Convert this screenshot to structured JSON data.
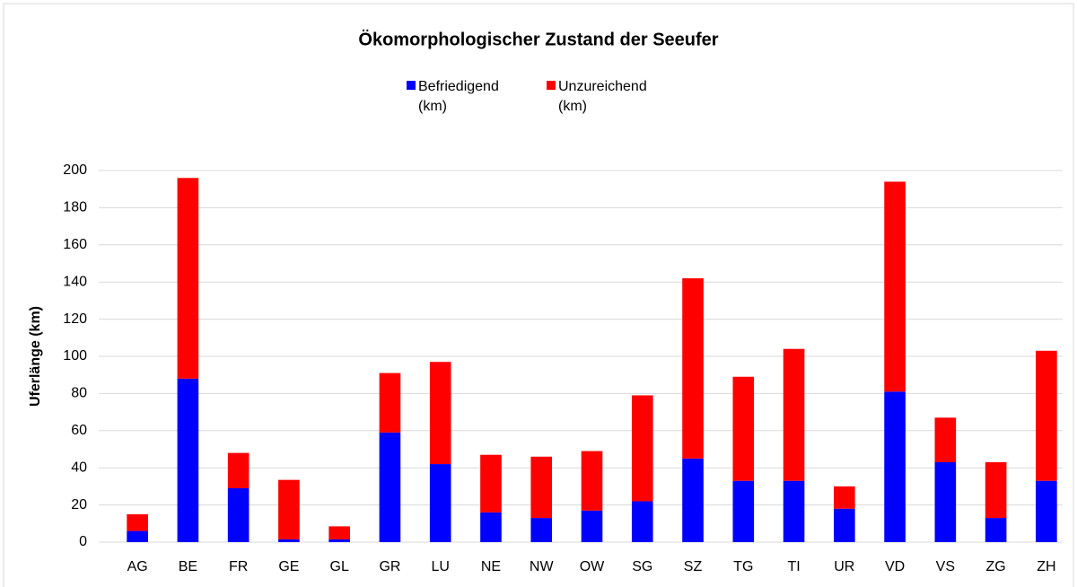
{
  "chart_data": {
    "type": "stacked_bar",
    "title": "Ökomorphologischer Zustand der Seeufer",
    "y_label": "Uferlänge (km)",
    "categories": [
      "AG",
      "BE",
      "FR",
      "GE",
      "GL",
      "GR",
      "LU",
      "NE",
      "NW",
      "OW",
      "SG",
      "SZ",
      "TG",
      "TI",
      "UR",
      "VD",
      "VS",
      "ZG",
      "ZH"
    ],
    "series": [
      {
        "name": "Befriedigend (km)",
        "color": "#0000ff",
        "values": [
          6,
          88,
          29,
          1.5,
          1.5,
          59,
          42,
          16,
          13,
          17,
          22,
          45,
          33,
          33,
          18,
          81,
          43,
          13,
          33
        ]
      },
      {
        "name": "Unzureichend (km)",
        "color": "#ff0000",
        "values": [
          9,
          108,
          19,
          32,
          7,
          32,
          55,
          31,
          33,
          32,
          57,
          97,
          56,
          71,
          12,
          113,
          24,
          30,
          70
        ]
      }
    ],
    "ylim": [
      0,
      200
    ],
    "yticks": [
      0,
      20,
      40,
      60,
      80,
      100,
      120,
      140,
      160,
      180,
      200
    ],
    "grid": true
  }
}
